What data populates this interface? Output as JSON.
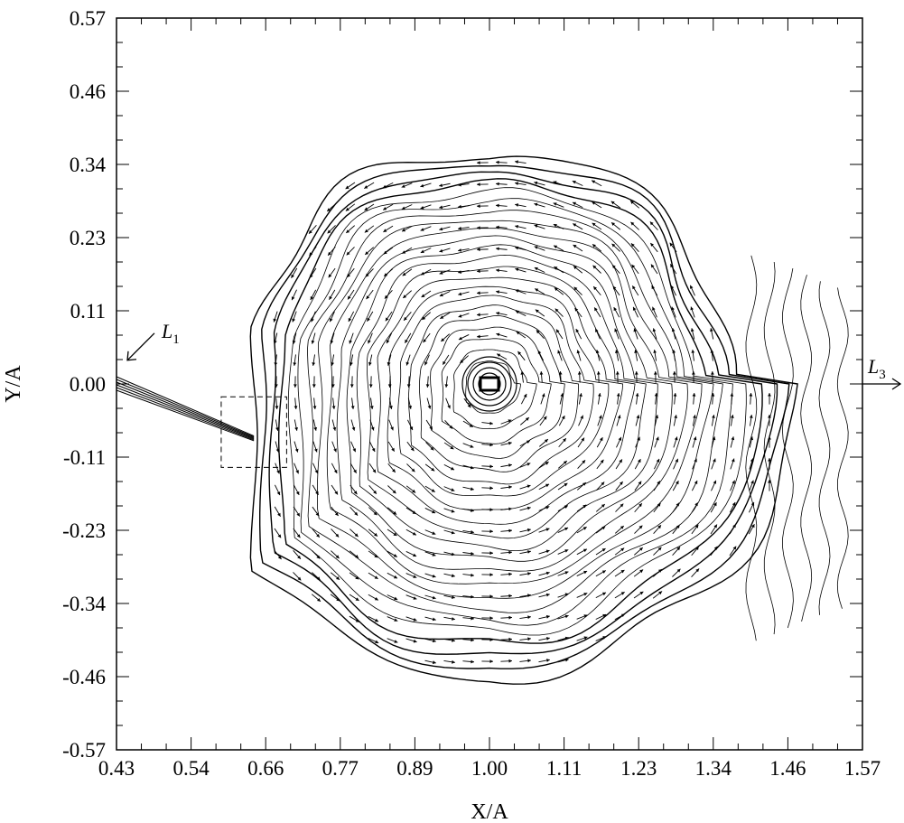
{
  "chart_data": {
    "type": "vector-contour",
    "xlabel": "X/A",
    "ylabel": "Y/A",
    "xlim": [
      0.43,
      1.57
    ],
    "ylim": [
      -0.57,
      0.57
    ],
    "x_ticks": [
      "0.43",
      "0.54",
      "0.66",
      "0.77",
      "0.89",
      "1.00",
      "1.11",
      "1.23",
      "1.34",
      "1.46",
      "1.57"
    ],
    "y_ticks": [
      "0.57",
      "0.46",
      "0.34",
      "0.23",
      "0.11",
      "0.00",
      "-0.11",
      "-0.23",
      "-0.34",
      "-0.46",
      "-0.57"
    ],
    "vortex_center": [
      1.0,
      0.0
    ],
    "vortex_extent": {
      "x": [
        0.64,
        1.555
      ],
      "y": [
        -0.475,
        0.38
      ]
    },
    "jet": {
      "from": [
        0.43,
        0.0
      ],
      "to": [
        0.64,
        -0.085
      ]
    },
    "inspection_box": {
      "x": [
        0.59,
        0.69
      ],
      "y": [
        -0.13,
        -0.02
      ]
    },
    "annotations": [
      {
        "name": "L1",
        "label": "L",
        "subscript": "1",
        "at": [
          0.43,
          0.02
        ]
      },
      {
        "name": "L3",
        "label": "L",
        "subscript": "3",
        "at": [
          1.57,
          0.0
        ]
      }
    ],
    "contour_count": 22,
    "grid": false
  }
}
